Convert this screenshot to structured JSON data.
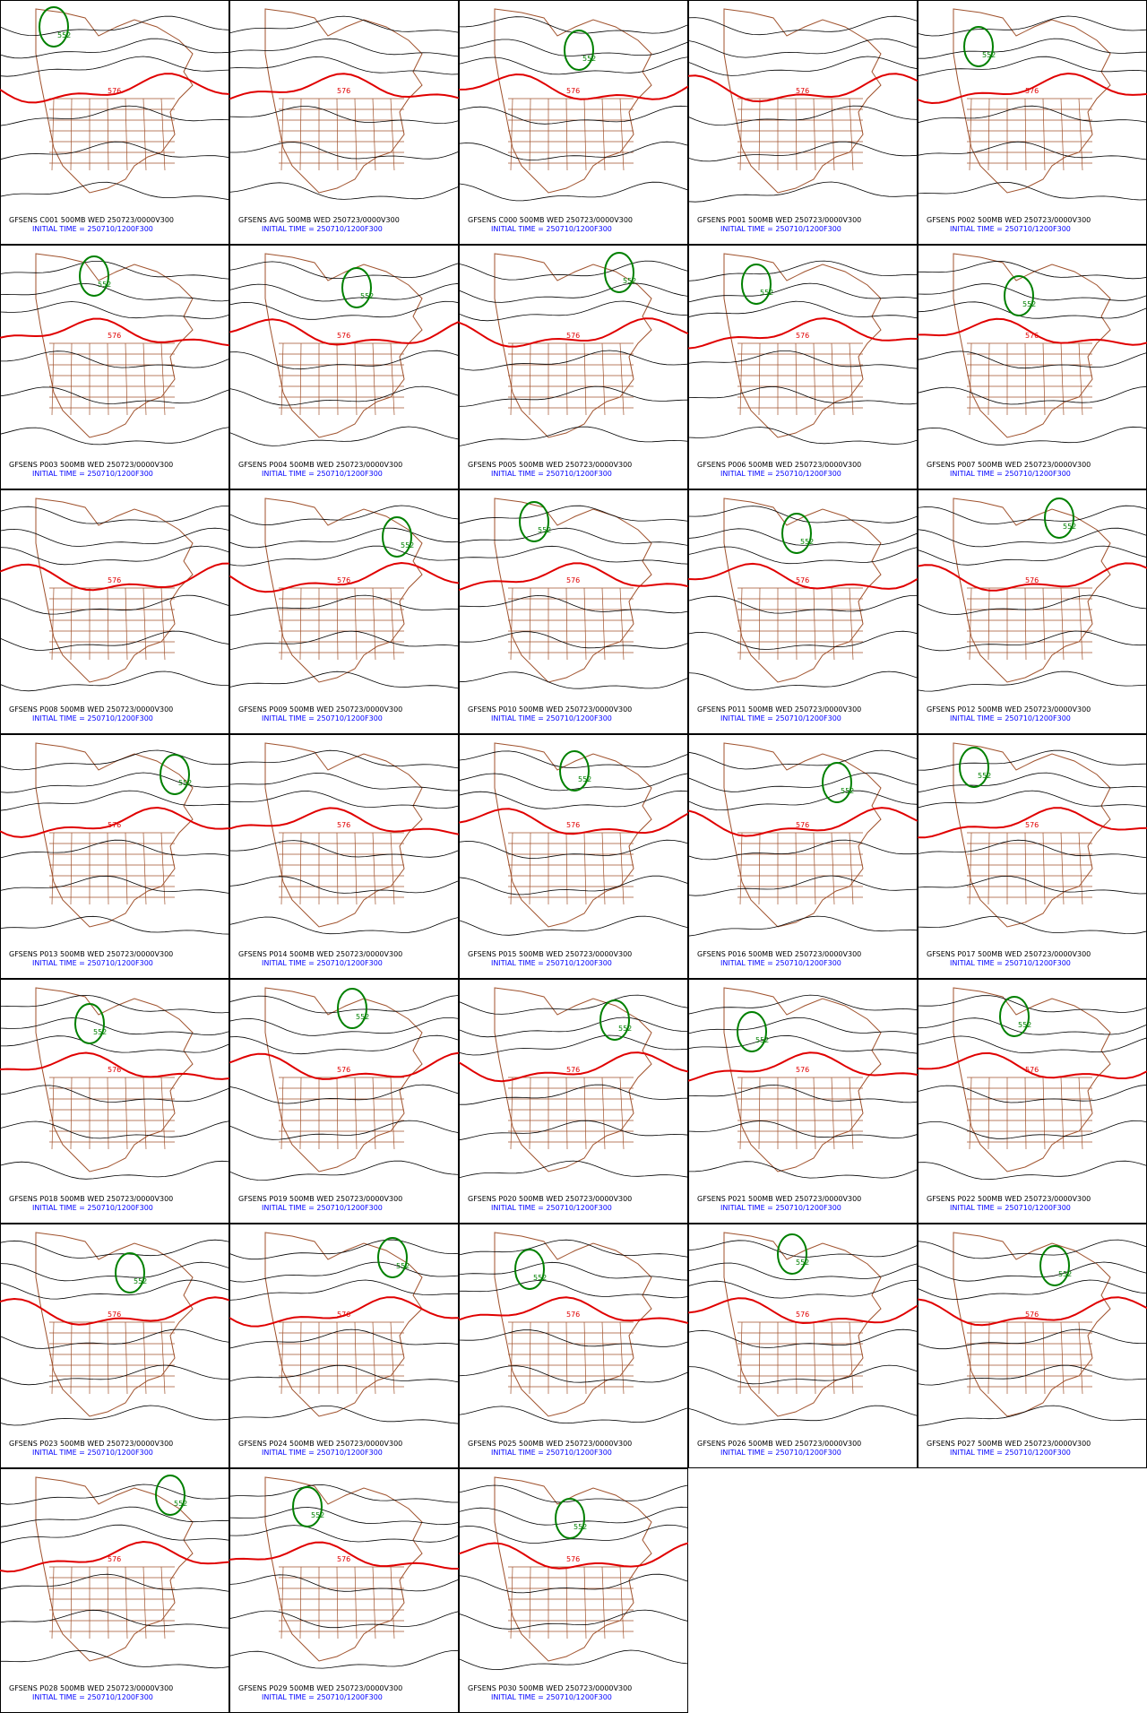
{
  "panels": [
    {
      "title": "GFSENS C001 500MB WED 250723/0000V300",
      "subtitle": "INITIAL TIME = 250710/1200F300",
      "labels": [
        "576",
        "552"
      ]
    },
    {
      "title": "GFSENS AVG 500MB WED 250723/0000V300",
      "subtitle": "INITIAL TIME = 250710/1200F300",
      "labels": [
        "576"
      ]
    },
    {
      "title": "GFSENS C000 500MB WED 250723/0000V300",
      "subtitle": "INITIAL TIME = 250710/1200F300",
      "labels": [
        "576",
        "552"
      ]
    },
    {
      "title": "GFSENS P001 500MB WED 250723/0000V300",
      "subtitle": "INITIAL TIME = 250710/1200F300",
      "labels": [
        "576"
      ]
    },
    {
      "title": "GFSENS P002 500MB WED 250723/0000V300",
      "subtitle": "INITIAL TIME = 250710/1200F300",
      "labels": [
        "576",
        "552"
      ]
    },
    {
      "title": "GFSENS P003 500MB WED 250723/0000V300",
      "subtitle": "INITIAL TIME = 250710/1200F300",
      "labels": [
        "576",
        "552"
      ]
    },
    {
      "title": "GFSENS P004 500MB WED 250723/0000V300",
      "subtitle": "INITIAL TIME = 250710/1200F300",
      "labels": [
        "576",
        "552"
      ]
    },
    {
      "title": "GFSENS P005 500MB WED 250723/0000V300",
      "subtitle": "INITIAL TIME = 250710/1200F300",
      "labels": [
        "576",
        "552"
      ]
    },
    {
      "title": "GFSENS P006 500MB WED 250723/0000V300",
      "subtitle": "INITIAL TIME = 250710/1200F300",
      "labels": [
        "576",
        "552"
      ]
    },
    {
      "title": "GFSENS P007 500MB WED 250723/0000V300",
      "subtitle": "INITIAL TIME = 250710/1200F300",
      "labels": [
        "576",
        "552"
      ]
    },
    {
      "title": "GFSENS P008 500MB WED 250723/0000V300",
      "subtitle": "INITIAL TIME = 250710/1200F300",
      "labels": [
        "576"
      ]
    },
    {
      "title": "GFSENS P009 500MB WED 250723/0000V300",
      "subtitle": "INITIAL TIME = 250710/1200F300",
      "labels": [
        "576",
        "552"
      ]
    },
    {
      "title": "GFSENS P010 500MB WED 250723/0000V300",
      "subtitle": "INITIAL TIME = 250710/1200F300",
      "labels": [
        "576",
        "552"
      ]
    },
    {
      "title": "GFSENS P011 500MB WED 250723/0000V300",
      "subtitle": "INITIAL TIME = 250710/1200F300",
      "labels": [
        "576",
        "552"
      ]
    },
    {
      "title": "GFSENS P012 500MB WED 250723/0000V300",
      "subtitle": "INITIAL TIME = 250710/1200F300",
      "labels": [
        "576",
        "552"
      ]
    },
    {
      "title": "GFSENS P013 500MB WED 250723/0000V300",
      "subtitle": "INITIAL TIME = 250710/1200F300",
      "labels": [
        "576",
        "552"
      ]
    },
    {
      "title": "GFSENS P014 500MB WED 250723/0000V300",
      "subtitle": "INITIAL TIME = 250710/1200F300",
      "labels": [
        "576"
      ]
    },
    {
      "title": "GFSENS P015 500MB WED 250723/0000V300",
      "subtitle": "INITIAL TIME = 250710/1200F300",
      "labels": [
        "576",
        "552"
      ]
    },
    {
      "title": "GFSENS P016 500MB WED 250723/0000V300",
      "subtitle": "INITIAL TIME = 250710/1200F300",
      "labels": [
        "576",
        "552"
      ]
    },
    {
      "title": "GFSENS P017 500MB WED 250723/0000V300",
      "subtitle": "INITIAL TIME = 250710/1200F300",
      "labels": [
        "576",
        "552"
      ]
    },
    {
      "title": "GFSENS P018 500MB WED 250723/0000V300",
      "subtitle": "INITIAL TIME = 250710/1200F300",
      "labels": [
        "576",
        "552"
      ]
    },
    {
      "title": "GFSENS P019 500MB WED 250723/0000V300",
      "subtitle": "INITIAL TIME = 250710/1200F300",
      "labels": [
        "576",
        "552"
      ]
    },
    {
      "title": "GFSENS P020 500MB WED 250723/0000V300",
      "subtitle": "INITIAL TIME = 250710/1200F300",
      "labels": [
        "576",
        "552"
      ]
    },
    {
      "title": "GFSENS P021 500MB WED 250723/0000V300",
      "subtitle": "INITIAL TIME = 250710/1200F300",
      "labels": [
        "576",
        "552"
      ]
    },
    {
      "title": "GFSENS P022 500MB WED 250723/0000V300",
      "subtitle": "INITIAL TIME = 250710/1200F300",
      "labels": [
        "576",
        "552"
      ]
    },
    {
      "title": "GFSENS P023 500MB WED 250723/0000V300",
      "subtitle": "INITIAL TIME = 250710/1200F300",
      "labels": [
        "576",
        "552"
      ]
    },
    {
      "title": "GFSENS P024 500MB WED 250723/0000V300",
      "subtitle": "INITIAL TIME = 250710/1200F300",
      "labels": [
        "576",
        "552"
      ]
    },
    {
      "title": "GFSENS P025 500MB WED 250723/0000V300",
      "subtitle": "INITIAL TIME = 250710/1200F300",
      "labels": [
        "576",
        "552"
      ]
    },
    {
      "title": "GFSENS P026 500MB WED 250723/0000V300",
      "subtitle": "INITIAL TIME = 250710/1200F300",
      "labels": [
        "576",
        "552"
      ]
    },
    {
      "title": "GFSENS P027 500MB WED 250723/0000V300",
      "subtitle": "INITIAL TIME = 250710/1200F300",
      "labels": [
        "576",
        "552"
      ]
    },
    {
      "title": "GFSENS P028 500MB WED 250723/0000V300",
      "subtitle": "INITIAL TIME = 250710/1200F300",
      "labels": [
        "576",
        "552"
      ]
    },
    {
      "title": "GFSENS P029 500MB WED 250723/0000V300",
      "subtitle": "INITIAL TIME = 250710/1200F300",
      "labels": [
        "576",
        "552"
      ]
    },
    {
      "title": "GFSENS P030 500MB WED 250723/0000V300",
      "subtitle": "INITIAL TIME = 250710/1200F300",
      "labels": [
        "576",
        "552"
      ]
    }
  ]
}
